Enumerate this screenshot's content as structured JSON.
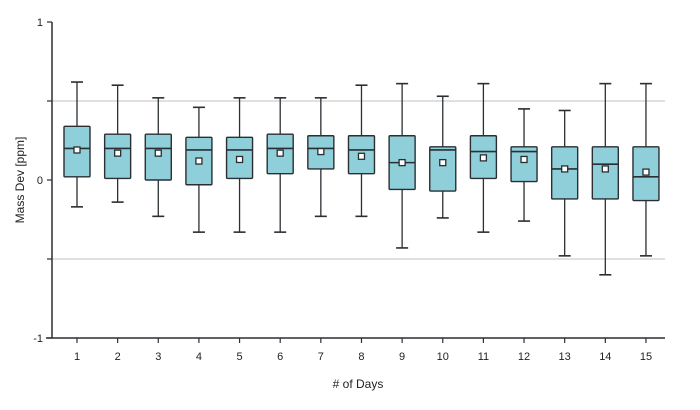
{
  "chart_data": {
    "type": "box",
    "xlabel": "# of Days",
    "ylabel": "Mass Dev [ppm]",
    "ylim": [
      -1,
      1
    ],
    "yticks": [
      -1,
      -0.5,
      0,
      0.5,
      1
    ],
    "ytick_labels": [
      "-1",
      "",
      "0",
      "",
      "1"
    ],
    "gridlines_y": [
      -0.5,
      0.5
    ],
    "categories": [
      "1",
      "2",
      "3",
      "4",
      "5",
      "6",
      "7",
      "8",
      "9",
      "10",
      "11",
      "12",
      "13",
      "14",
      "15"
    ],
    "boxes": [
      {
        "whisker_high": 0.62,
        "q3": 0.34,
        "median": 0.2,
        "mean": 0.19,
        "q1": 0.02,
        "whisker_low": -0.17
      },
      {
        "whisker_high": 0.6,
        "q3": 0.29,
        "median": 0.2,
        "mean": 0.17,
        "q1": 0.01,
        "whisker_low": -0.14
      },
      {
        "whisker_high": 0.52,
        "q3": 0.29,
        "median": 0.2,
        "mean": 0.17,
        "q1": 0.0,
        "whisker_low": -0.23
      },
      {
        "whisker_high": 0.46,
        "q3": 0.27,
        "median": 0.19,
        "mean": 0.12,
        "q1": -0.03,
        "whisker_low": -0.33
      },
      {
        "whisker_high": 0.52,
        "q3": 0.27,
        "median": 0.19,
        "mean": 0.13,
        "q1": 0.01,
        "whisker_low": -0.33
      },
      {
        "whisker_high": 0.52,
        "q3": 0.29,
        "median": 0.2,
        "mean": 0.17,
        "q1": 0.04,
        "whisker_low": -0.33
      },
      {
        "whisker_high": 0.52,
        "q3": 0.28,
        "median": 0.2,
        "mean": 0.18,
        "q1": 0.07,
        "whisker_low": -0.23
      },
      {
        "whisker_high": 0.6,
        "q3": 0.28,
        "median": 0.19,
        "mean": 0.15,
        "q1": 0.04,
        "whisker_low": -0.23
      },
      {
        "whisker_high": 0.61,
        "q3": 0.28,
        "median": 0.11,
        "mean": 0.11,
        "q1": -0.06,
        "whisker_low": -0.43
      },
      {
        "whisker_high": 0.53,
        "q3": 0.21,
        "median": 0.19,
        "mean": 0.11,
        "q1": -0.07,
        "whisker_low": -0.24
      },
      {
        "whisker_high": 0.61,
        "q3": 0.28,
        "median": 0.18,
        "mean": 0.14,
        "q1": 0.01,
        "whisker_low": -0.33
      },
      {
        "whisker_high": 0.45,
        "q3": 0.21,
        "median": 0.18,
        "mean": 0.13,
        "q1": -0.01,
        "whisker_low": -0.26
      },
      {
        "whisker_high": 0.44,
        "q3": 0.21,
        "median": 0.07,
        "mean": 0.07,
        "q1": -0.12,
        "whisker_low": -0.48
      },
      {
        "whisker_high": 0.61,
        "q3": 0.21,
        "median": 0.1,
        "mean": 0.07,
        "q1": -0.12,
        "whisker_low": -0.6
      },
      {
        "whisker_high": 0.61,
        "q3": 0.21,
        "median": 0.02,
        "mean": 0.05,
        "q1": -0.13,
        "whisker_low": -0.48
      }
    ],
    "colors": {
      "box_fill": "#8ecfd9",
      "stroke": "#2a2f33",
      "grid": "#d6d6d6"
    }
  }
}
